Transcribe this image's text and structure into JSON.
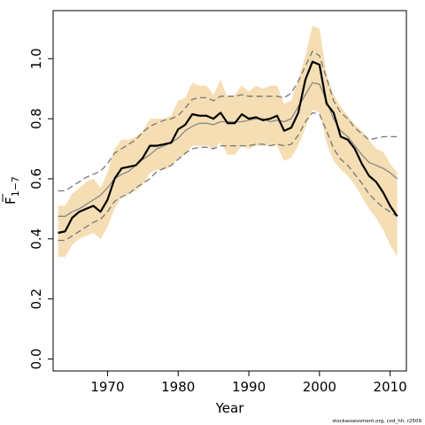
{
  "chart_data": {
    "type": "line",
    "xlabel": "Year",
    "ylabel": "F",
    "ylabel_sub": "1−7",
    "xlim": [
      1962.3,
      2012.3
    ],
    "ylim": [
      -0.04,
      1.16
    ],
    "x_ticks": [
      1970,
      1980,
      1990,
      2000,
      2010
    ],
    "x_tick_labels": [
      "1970",
      "1980",
      "1990",
      "2000",
      "2010"
    ],
    "y_ticks": [
      0.0,
      0.2,
      0.4,
      0.6,
      0.8,
      1.0
    ],
    "y_tick_labels": [
      "0.0",
      "0.2",
      "0.4",
      "0.6",
      "0.8",
      "1.0"
    ],
    "grid": false,
    "years": [
      1963,
      1964,
      1965,
      1966,
      1967,
      1968,
      1969,
      1970,
      1971,
      1972,
      1973,
      1974,
      1975,
      1976,
      1977,
      1978,
      1979,
      1980,
      1981,
      1982,
      1983,
      1984,
      1985,
      1986,
      1987,
      1988,
      1989,
      1990,
      1991,
      1992,
      1993,
      1994,
      1995,
      1996,
      1997,
      1998,
      1999,
      2000,
      2001,
      2002,
      2003,
      2004,
      2005,
      2006,
      2007,
      2008,
      2009,
      2010,
      2011
    ],
    "series": [
      {
        "role": "band_upper",
        "color": "#f5deb3",
        "values": [
          0.51,
          0.51,
          0.55,
          0.57,
          0.59,
          0.6,
          0.57,
          0.62,
          0.7,
          0.73,
          0.73,
          0.74,
          0.76,
          0.8,
          0.8,
          0.8,
          0.81,
          0.86,
          0.87,
          0.92,
          0.91,
          0.91,
          0.88,
          0.93,
          0.87,
          0.88,
          0.91,
          0.89,
          0.91,
          0.9,
          0.91,
          0.91,
          0.85,
          0.86,
          0.93,
          1.01,
          1.11,
          1.1,
          0.95,
          0.88,
          0.84,
          0.81,
          0.78,
          0.76,
          0.73,
          0.7,
          0.69,
          0.65,
          0.62
        ]
      },
      {
        "role": "band_lower",
        "color": "#f5deb3",
        "values": [
          0.34,
          0.34,
          0.38,
          0.4,
          0.41,
          0.42,
          0.4,
          0.44,
          0.5,
          0.54,
          0.55,
          0.56,
          0.58,
          0.62,
          0.63,
          0.63,
          0.64,
          0.67,
          0.68,
          0.71,
          0.71,
          0.71,
          0.7,
          0.72,
          0.68,
          0.68,
          0.71,
          0.7,
          0.71,
          0.71,
          0.71,
          0.71,
          0.66,
          0.67,
          0.71,
          0.77,
          0.83,
          0.82,
          0.72,
          0.66,
          0.63,
          0.61,
          0.58,
          0.54,
          0.5,
          0.47,
          0.43,
          0.38,
          0.34
        ]
      },
      {
        "role": "estimate",
        "color": "#000000",
        "values": [
          0.42,
          0.425,
          0.47,
          0.49,
          0.5,
          0.51,
          0.49,
          0.53,
          0.6,
          0.635,
          0.64,
          0.645,
          0.67,
          0.71,
          0.71,
          0.715,
          0.72,
          0.765,
          0.78,
          0.815,
          0.81,
          0.81,
          0.8,
          0.82,
          0.785,
          0.785,
          0.815,
          0.8,
          0.805,
          0.795,
          0.8,
          0.81,
          0.76,
          0.77,
          0.82,
          0.93,
          0.99,
          0.98,
          0.85,
          0.82,
          0.74,
          0.73,
          0.7,
          0.65,
          0.61,
          0.59,
          0.555,
          0.51,
          0.475
        ]
      },
      {
        "role": "median",
        "color": "#888888",
        "values": [
          0.475,
          0.475,
          0.49,
          0.5,
          0.515,
          0.53,
          0.545,
          0.57,
          0.6,
          0.615,
          0.625,
          0.645,
          0.665,
          0.68,
          0.7,
          0.71,
          0.72,
          0.735,
          0.76,
          0.775,
          0.785,
          0.785,
          0.78,
          0.79,
          0.79,
          0.79,
          0.79,
          0.795,
          0.8,
          0.8,
          0.79,
          0.795,
          0.79,
          0.8,
          0.84,
          0.88,
          0.92,
          0.915,
          0.86,
          0.8,
          0.76,
          0.74,
          0.71,
          0.68,
          0.655,
          0.645,
          0.635,
          0.62,
          0.6
        ]
      },
      {
        "role": "dashed_upper",
        "color": "#777777",
        "values": [
          0.56,
          0.56,
          0.575,
          0.59,
          0.605,
          0.615,
          0.625,
          0.65,
          0.685,
          0.7,
          0.715,
          0.73,
          0.755,
          0.775,
          0.785,
          0.795,
          0.8,
          0.81,
          0.835,
          0.865,
          0.87,
          0.87,
          0.86,
          0.875,
          0.875,
          0.875,
          0.88,
          0.875,
          0.875,
          0.875,
          0.875,
          0.875,
          0.87,
          0.885,
          0.925,
          0.975,
          1.025,
          1.01,
          0.935,
          0.86,
          0.82,
          0.8,
          0.77,
          0.75,
          0.73,
          0.735,
          0.74,
          0.74,
          0.74
        ]
      },
      {
        "role": "dashed_lower",
        "color": "#777777",
        "values": [
          0.395,
          0.395,
          0.41,
          0.425,
          0.44,
          0.455,
          0.465,
          0.49,
          0.525,
          0.54,
          0.55,
          0.57,
          0.585,
          0.6,
          0.625,
          0.635,
          0.645,
          0.665,
          0.685,
          0.7,
          0.705,
          0.705,
          0.7,
          0.71,
          0.71,
          0.71,
          0.71,
          0.71,
          0.715,
          0.715,
          0.71,
          0.715,
          0.71,
          0.715,
          0.745,
          0.79,
          0.82,
          0.815,
          0.76,
          0.7,
          0.665,
          0.645,
          0.615,
          0.585,
          0.55,
          0.525,
          0.505,
          0.49,
          0.475
        ]
      }
    ],
    "credit": "stockassessment.org, cod_hh, r2509"
  }
}
